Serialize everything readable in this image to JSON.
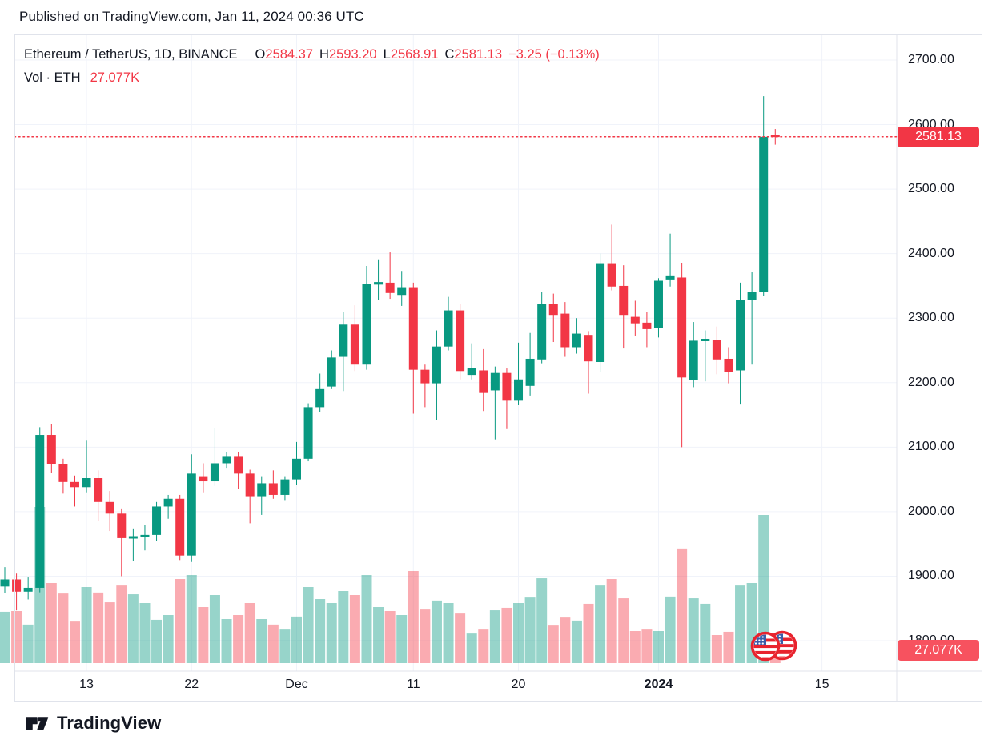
{
  "published_bar": {
    "text": "Published on TradingView.com, Jan 11, 2024 00:36 UTC"
  },
  "legend": {
    "symbol": "Ethereum / TetherUS, 1D, BINANCE",
    "ohlc": {
      "o_label": "O",
      "o": "2584.37",
      "h_label": "H",
      "h": "2593.20",
      "l_label": "L",
      "l": "2568.91",
      "c_label": "C",
      "c": "2581.13",
      "change": "−3.25 (−0.13%)"
    },
    "volume_label": "Vol · ETH",
    "volume_value": "27.077K"
  },
  "y_axis": {
    "ticks": [
      "2700.00",
      "2600.00",
      "2500.00",
      "2400.00",
      "2300.00",
      "2200.00",
      "2100.00",
      "2000.00",
      "1900.00",
      "1800.00"
    ],
    "price_badge": "2581.13",
    "volume_badge": "27.077K"
  },
  "x_axis": {
    "labels": [
      {
        "text": "13",
        "index": 7,
        "bold": false
      },
      {
        "text": "22",
        "index": 16,
        "bold": false
      },
      {
        "text": "Dec",
        "index": 25,
        "bold": false
      },
      {
        "text": "11",
        "index": 35,
        "bold": false
      },
      {
        "text": "20",
        "index": 44,
        "bold": false
      },
      {
        "text": "2024",
        "index": 56,
        "bold": true
      },
      {
        "text": "15",
        "index": 70,
        "bold": false
      }
    ]
  },
  "footer": {
    "brand": "TradingView"
  },
  "colors": {
    "up": "#089981",
    "down": "#F23645",
    "grid": "#F0F3FA",
    "border": "#E0E3EB",
    "text": "#131722",
    "price_line": "#F23645",
    "flag_ring": "#E8232E",
    "flag_canton": "#3C5DA8"
  },
  "chart_data": {
    "type": "candlestick",
    "title": "Ethereum / TetherUS, 1D, BINANCE",
    "symbol": "ETHUSDT",
    "exchange": "BINANCE",
    "interval": "1D",
    "last_price": 2581.13,
    "price_line_value": 2581.13,
    "ylim": [
      1800,
      2700
    ],
    "legend_position": "top-left",
    "grid": true,
    "columns": [
      "date",
      "open",
      "high",
      "low",
      "close",
      "volume_K_ETH"
    ],
    "current_bar_volume_K": 27.077,
    "candles": [
      [
        "Nov 6",
        1884,
        1914,
        1874,
        1895,
        205
      ],
      [
        "Nov 7",
        1895,
        1904,
        1847,
        1876,
        208
      ],
      [
        "Nov 8",
        1876,
        1898,
        1864,
        1882,
        154
      ],
      [
        "Nov 9",
        1882,
        2131,
        1875,
        2119,
        624
      ],
      [
        "Nov 10",
        2119,
        2136,
        2060,
        2074,
        320
      ],
      [
        "Nov 11",
        2074,
        2082,
        2028,
        2046,
        278
      ],
      [
        "Nov 12",
        2046,
        2056,
        2008,
        2038,
        166
      ],
      [
        "Nov 13",
        2038,
        2110,
        2030,
        2052,
        304
      ],
      [
        "Nov 14",
        2052,
        2064,
        1986,
        2015,
        282
      ],
      [
        "Nov 15",
        2015,
        2032,
        1970,
        1997,
        243
      ],
      [
        "Nov 16",
        1997,
        2005,
        1900,
        1959,
        310
      ],
      [
        "Nov 17",
        1959,
        1974,
        1924,
        1962,
        275
      ],
      [
        "Nov 18",
        1962,
        1980,
        1940,
        1964,
        240
      ],
      [
        "Nov 19",
        1964,
        2015,
        1955,
        2008,
        173
      ],
      [
        "Nov 20",
        2008,
        2026,
        1989,
        2020,
        192
      ],
      [
        "Nov 21",
        2020,
        2026,
        1925,
        1932,
        336
      ],
      [
        "Nov 22",
        1932,
        2089,
        1922,
        2059,
        352
      ],
      [
        "Nov 23",
        2055,
        2075,
        2030,
        2047,
        224
      ],
      [
        "Nov 24",
        2047,
        2130,
        2040,
        2075,
        272
      ],
      [
        "Nov 25",
        2075,
        2093,
        2068,
        2085,
        176
      ],
      [
        "Nov 26",
        2085,
        2093,
        2035,
        2059,
        192
      ],
      [
        "Nov 27",
        2059,
        2065,
        1982,
        2024,
        240
      ],
      [
        "Nov 28",
        2024,
        2055,
        1995,
        2044,
        176
      ],
      [
        "Nov 29",
        2044,
        2064,
        2020,
        2026,
        154
      ],
      [
        "Nov 30",
        2026,
        2055,
        2018,
        2050,
        134
      ],
      [
        "Dec 1",
        2050,
        2108,
        2042,
        2082,
        186
      ],
      [
        "Dec 2",
        2082,
        2168,
        2078,
        2162,
        304
      ],
      [
        "Dec 3",
        2162,
        2214,
        2155,
        2190,
        256
      ],
      [
        "Dec 4",
        2194,
        2250,
        2190,
        2239,
        240
      ],
      [
        "Dec 5",
        2240,
        2310,
        2187,
        2290,
        288
      ],
      [
        "Dec 6",
        2290,
        2320,
        2218,
        2228,
        272
      ],
      [
        "Dec 7",
        2228,
        2381,
        2220,
        2353,
        352
      ],
      [
        "Dec 8",
        2352,
        2390,
        2328,
        2356,
        224
      ],
      [
        "Dec 9",
        2355,
        2402,
        2330,
        2339,
        208
      ],
      [
        "Dec 10",
        2336,
        2372,
        2319,
        2348,
        192
      ],
      [
        "Dec 11",
        2348,
        2355,
        2152,
        2220,
        368
      ],
      [
        "Dec 12",
        2220,
        2228,
        2162,
        2199,
        214
      ],
      [
        "Dec 13",
        2199,
        2281,
        2142,
        2256,
        250
      ],
      [
        "Dec 14",
        2256,
        2333,
        2250,
        2312,
        240
      ],
      [
        "Dec 15",
        2312,
        2322,
        2205,
        2218,
        198
      ],
      [
        "Dec 16",
        2212,
        2261,
        2205,
        2223,
        118
      ],
      [
        "Dec 17",
        2219,
        2252,
        2156,
        2184,
        134
      ],
      [
        "Dec 18",
        2188,
        2225,
        2112,
        2215,
        211
      ],
      [
        "Dec 19",
        2215,
        2222,
        2128,
        2172,
        221
      ],
      [
        "Dec 20",
        2172,
        2262,
        2165,
        2205,
        240
      ],
      [
        "Dec 21",
        2195,
        2277,
        2180,
        2237,
        262
      ],
      [
        "Dec 22",
        2236,
        2340,
        2230,
        2322,
        339
      ],
      [
        "Dec 23",
        2322,
        2338,
        2263,
        2305,
        150
      ],
      [
        "Dec 24",
        2307,
        2325,
        2240,
        2255,
        182
      ],
      [
        "Dec 25",
        2255,
        2300,
        2245,
        2276,
        170
      ],
      [
        "Dec 26",
        2274,
        2280,
        2183,
        2233,
        237
      ],
      [
        "Dec 27",
        2232,
        2400,
        2216,
        2384,
        310
      ],
      [
        "Dec 28",
        2384,
        2445,
        2343,
        2349,
        336
      ],
      [
        "Dec 29",
        2350,
        2382,
        2253,
        2305,
        259
      ],
      [
        "Dec 30",
        2302,
        2327,
        2273,
        2292,
        128
      ],
      [
        "Dec 31",
        2293,
        2310,
        2255,
        2283,
        134
      ],
      [
        "Jan 1",
        2285,
        2362,
        2270,
        2358,
        128
      ],
      [
        "Jan 2",
        2360,
        2431,
        2349,
        2365,
        266
      ],
      [
        "Jan 3",
        2363,
        2385,
        2100,
        2208,
        458
      ],
      [
        "Jan 4",
        2204,
        2294,
        2193,
        2265,
        259
      ],
      [
        "Jan 5",
        2266,
        2281,
        2202,
        2268,
        237
      ],
      [
        "Jan 6",
        2266,
        2287,
        2213,
        2236,
        112
      ],
      [
        "Jan 7",
        2237,
        2255,
        2199,
        2217,
        125
      ],
      [
        "Jan 8",
        2219,
        2355,
        2166,
        2328,
        310
      ],
      [
        "Jan 9",
        2328,
        2371,
        2228,
        2340,
        320
      ],
      [
        "Jan 10",
        2341,
        2644,
        2335,
        2581,
        592
      ],
      [
        "Jan 11",
        2584.37,
        2593.2,
        2568.91,
        2581.13,
        27.077
      ]
    ]
  }
}
